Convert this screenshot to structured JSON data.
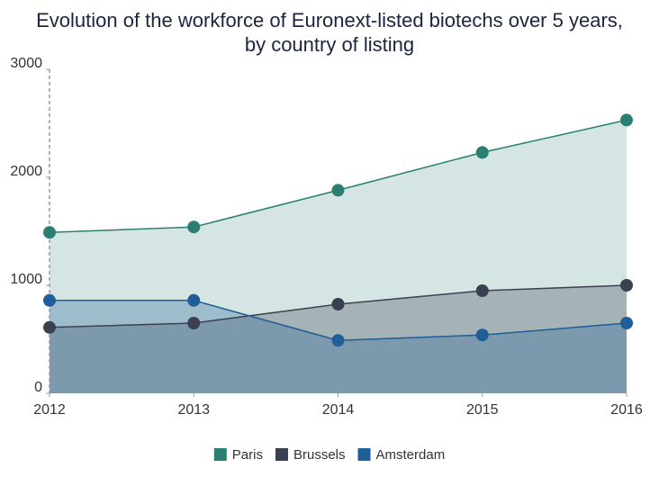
{
  "chart_data": {
    "type": "area",
    "title": [
      "Evolution of the workforce of Euronext-listed biotechs over 5 years,",
      "by country of listing"
    ],
    "x": [
      2012,
      2013,
      2014,
      2015,
      2016
    ],
    "xlim": [
      2012,
      2016
    ],
    "xticks": [
      2012,
      2013,
      2014,
      2015,
      2016
    ],
    "ylim": [
      0,
      3000
    ],
    "yticks": [
      0,
      1000,
      2000,
      3000
    ],
    "legend": "bottom",
    "series": [
      {
        "name": "Paris",
        "color": "#2a7f72",
        "values": [
          1490,
          1540,
          1880,
          2230,
          2530
        ]
      },
      {
        "name": "Brussels",
        "color": "#3b4050",
        "values": [
          610,
          650,
          825,
          950,
          1000
        ]
      },
      {
        "name": "Amsterdam",
        "color": "#1f5e98",
        "values": [
          860,
          860,
          490,
          540,
          650
        ]
      }
    ]
  }
}
